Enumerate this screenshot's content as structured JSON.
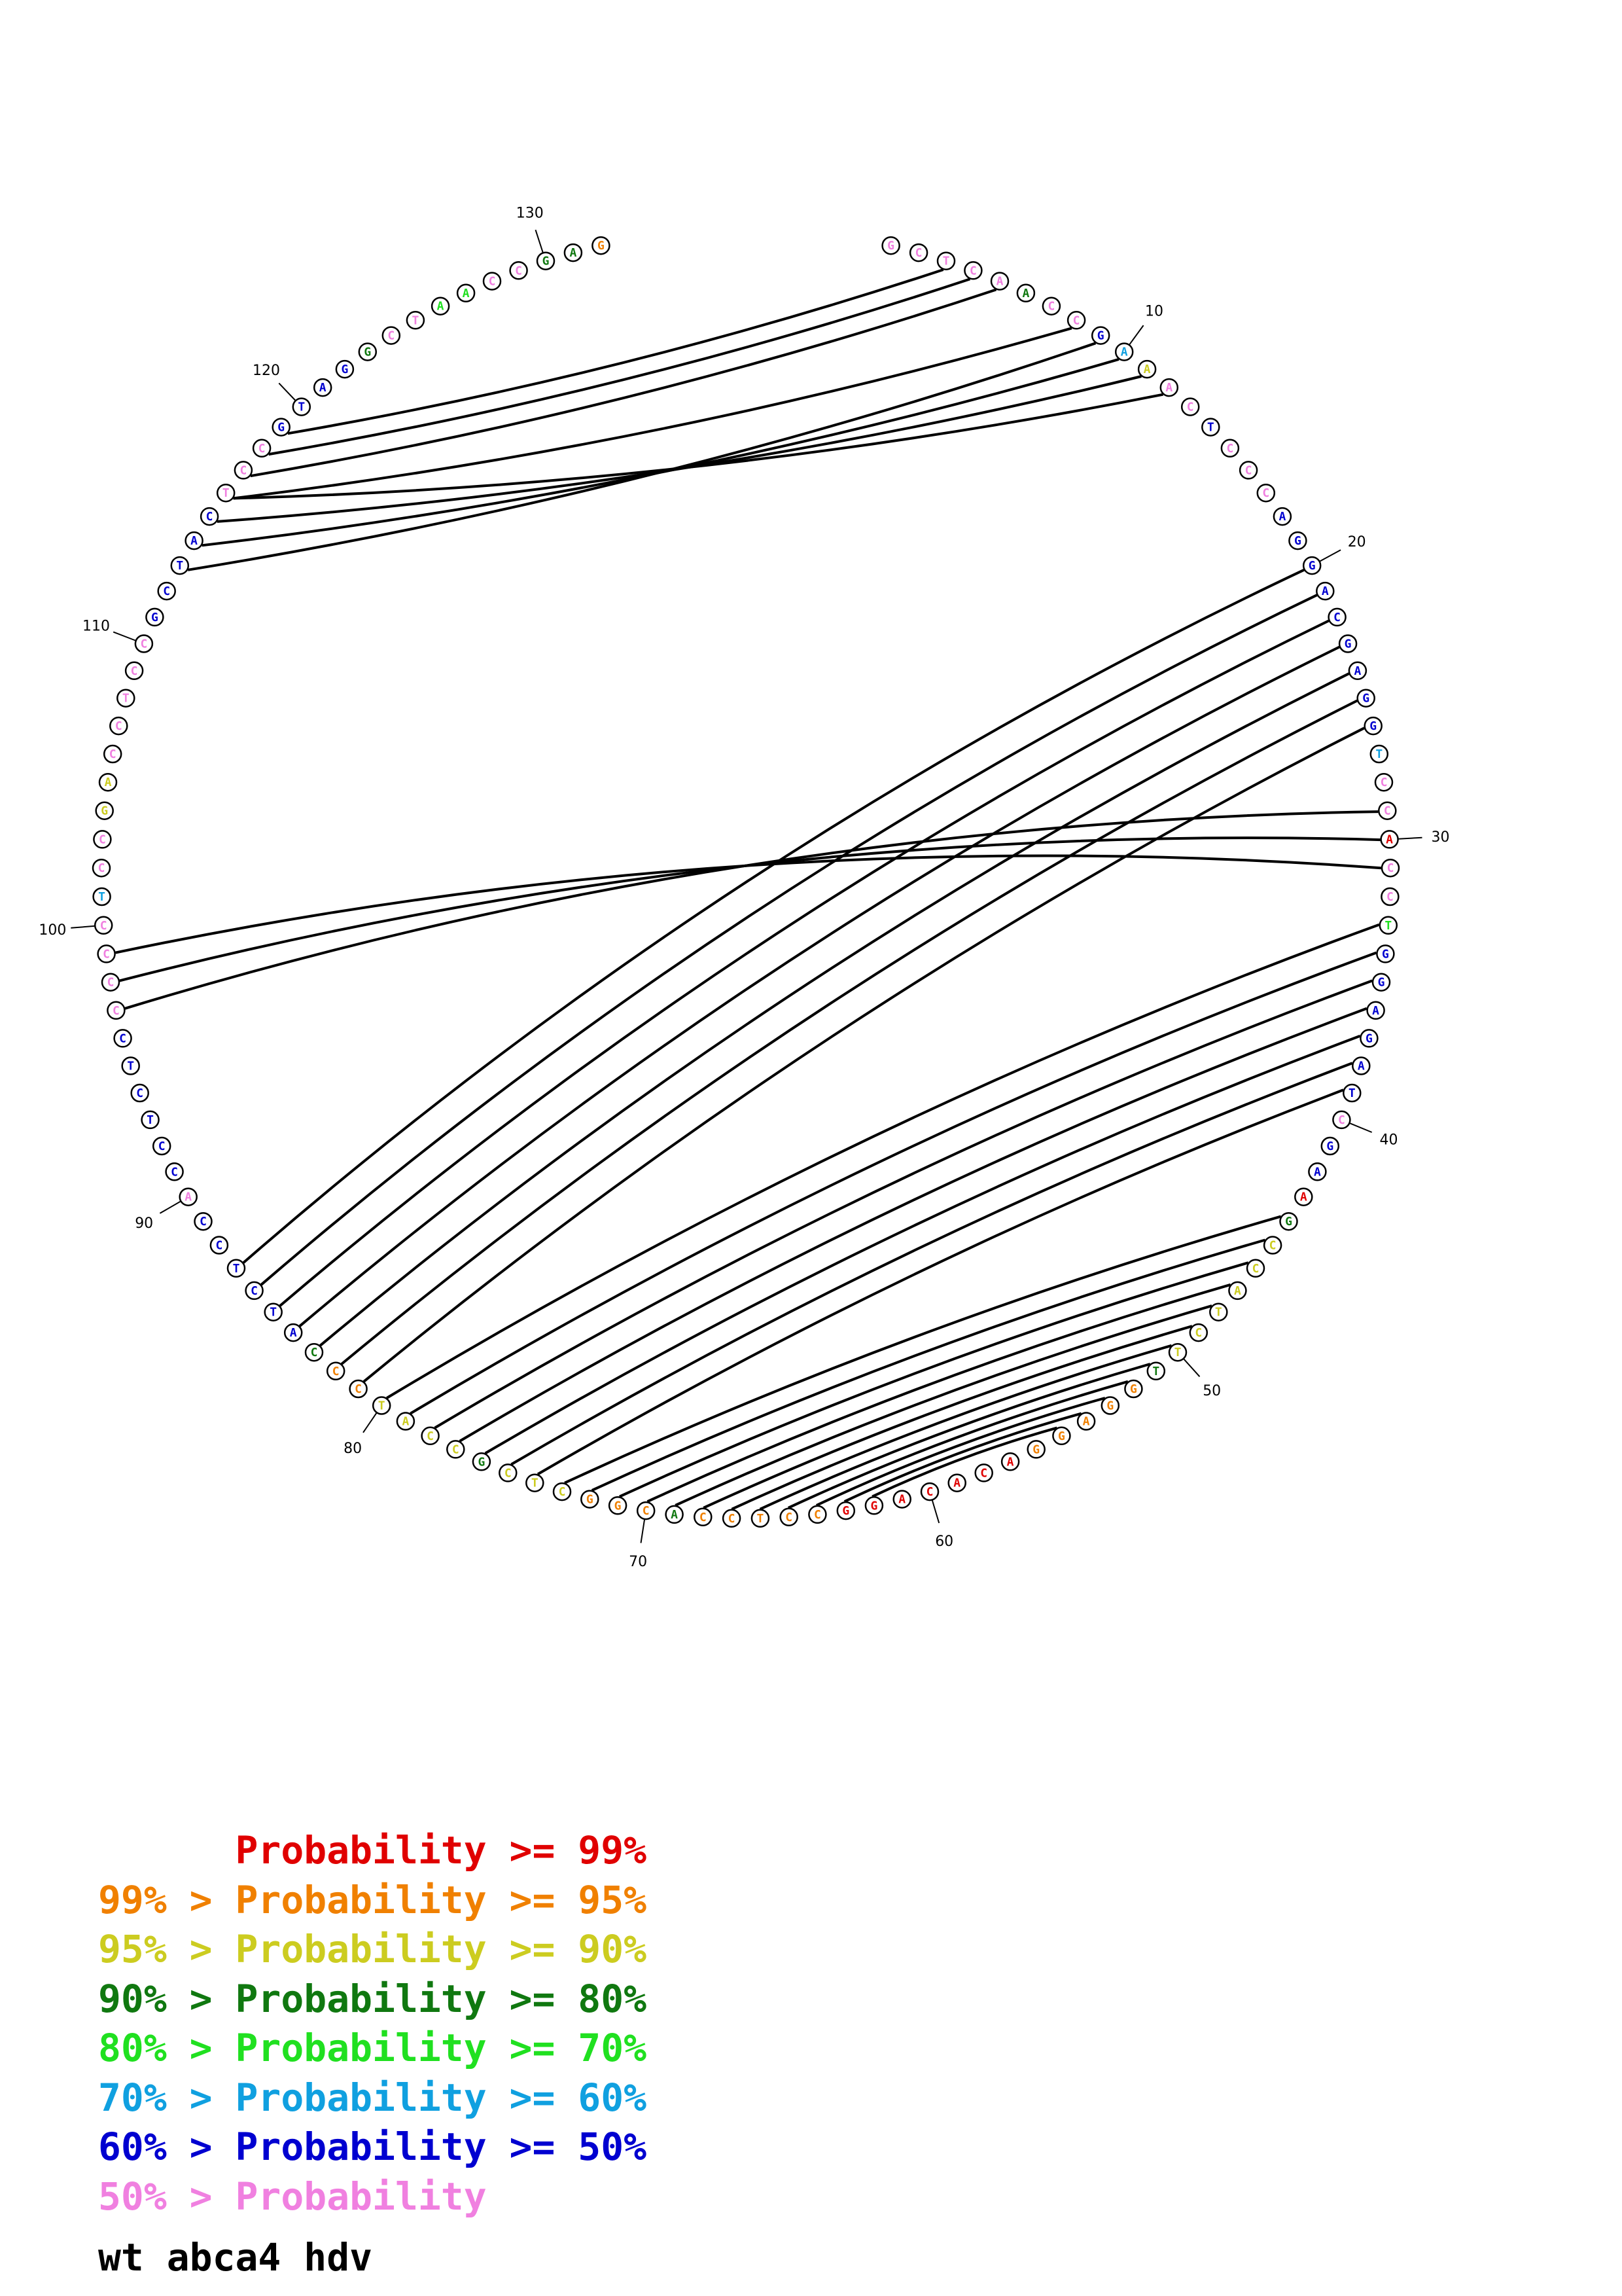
{
  "title": "wt abca4 hdv",
  "legend": [
    {
      "prefix": "      ",
      "label": "Probability >= 99%",
      "color": "#e00000"
    },
    {
      "prefix": "99% > ",
      "label": "Probability >= 95%",
      "color": "#f08000"
    },
    {
      "prefix": "95% > ",
      "label": "Probability >= 90%",
      "color": "#cccc20"
    },
    {
      "prefix": "90% > ",
      "label": "Probability >= 80%",
      "color": "#107810"
    },
    {
      "prefix": "80% > ",
      "label": "Probability >= 70%",
      "color": "#20e020"
    },
    {
      "prefix": "70% > ",
      "label": "Probability >= 60%",
      "color": "#10a0e0"
    },
    {
      "prefix": "60% > ",
      "label": "Probability >= 50%",
      "color": "#0000d0"
    },
    {
      "prefix": "50% > ",
      "label": "Probability",
      "color": "#f080e0"
    }
  ],
  "tick_labels": [
    "10",
    "20",
    "30",
    "40",
    "50",
    "60",
    "70",
    "80",
    "90",
    "100",
    "110",
    "120",
    "130"
  ],
  "sequence": [
    {
      "base": "G",
      "prob": "p50"
    },
    {
      "base": "C",
      "prob": "p50"
    },
    {
      "base": "T",
      "prob": "p50"
    },
    {
      "base": "C",
      "prob": "p50"
    },
    {
      "base": "A",
      "prob": "p50"
    },
    {
      "base": "A",
      "prob": "p80"
    },
    {
      "base": "C",
      "prob": "p50"
    },
    {
      "base": "C",
      "prob": "p50"
    },
    {
      "base": "G",
      "prob": "p50b"
    },
    {
      "base": "A",
      "prob": "p60"
    },
    {
      "base": "A",
      "prob": "p90"
    },
    {
      "base": "A",
      "prob": "p50"
    },
    {
      "base": "C",
      "prob": "p50"
    },
    {
      "base": "T",
      "prob": "p50b"
    },
    {
      "base": "C",
      "prob": "p50"
    },
    {
      "base": "C",
      "prob": "p50"
    },
    {
      "base": "C",
      "prob": "p50"
    },
    {
      "base": "A",
      "prob": "p50b"
    },
    {
      "base": "G",
      "prob": "p50b"
    },
    {
      "base": "G",
      "prob": "p50b"
    },
    {
      "base": "A",
      "prob": "p50b"
    },
    {
      "base": "C",
      "prob": "p50b"
    },
    {
      "base": "G",
      "prob": "p50b"
    },
    {
      "base": "A",
      "prob": "p50b"
    },
    {
      "base": "G",
      "prob": "p50b"
    },
    {
      "base": "G",
      "prob": "p50b"
    },
    {
      "base": "T",
      "prob": "p60"
    },
    {
      "base": "C",
      "prob": "p50"
    },
    {
      "base": "C",
      "prob": "p50"
    },
    {
      "base": "A",
      "prob": "p99"
    },
    {
      "base": "C",
      "prob": "p50"
    },
    {
      "base": "C",
      "prob": "p50"
    },
    {
      "base": "T",
      "prob": "p70"
    },
    {
      "base": "G",
      "prob": "p50b"
    },
    {
      "base": "G",
      "prob": "p50b"
    },
    {
      "base": "A",
      "prob": "p50b"
    },
    {
      "base": "G",
      "prob": "p50b"
    },
    {
      "base": "A",
      "prob": "p50b"
    },
    {
      "base": "T",
      "prob": "p50b"
    },
    {
      "base": "C",
      "prob": "p50"
    },
    {
      "base": "G",
      "prob": "p50b"
    },
    {
      "base": "A",
      "prob": "p50b"
    },
    {
      "base": "A",
      "prob": "p99"
    },
    {
      "base": "G",
      "prob": "p80"
    },
    {
      "base": "C",
      "prob": "p90"
    },
    {
      "base": "C",
      "prob": "p90"
    },
    {
      "base": "A",
      "prob": "p90"
    },
    {
      "base": "T",
      "prob": "p90"
    },
    {
      "base": "C",
      "prob": "p90"
    },
    {
      "base": "T",
      "prob": "p90"
    },
    {
      "base": "T",
      "prob": "p80"
    },
    {
      "base": "G",
      "prob": "p95"
    },
    {
      "base": "G",
      "prob": "p95"
    },
    {
      "base": "A",
      "prob": "p95"
    },
    {
      "base": "G",
      "prob": "p95"
    },
    {
      "base": "G",
      "prob": "p95"
    },
    {
      "base": "A",
      "prob": "p99"
    },
    {
      "base": "C",
      "prob": "p99"
    },
    {
      "base": "A",
      "prob": "p99"
    },
    {
      "base": "C",
      "prob": "p99"
    },
    {
      "base": "A",
      "prob": "p99"
    },
    {
      "base": "G",
      "prob": "p99"
    },
    {
      "base": "G",
      "prob": "p99"
    },
    {
      "base": "C",
      "prob": "p95"
    },
    {
      "base": "C",
      "prob": "p95"
    },
    {
      "base": "T",
      "prob": "p95"
    },
    {
      "base": "C",
      "prob": "p95"
    },
    {
      "base": "C",
      "prob": "p95"
    },
    {
      "base": "A",
      "prob": "p80"
    },
    {
      "base": "C",
      "prob": "p95"
    },
    {
      "base": "G",
      "prob": "p95"
    },
    {
      "base": "G",
      "prob": "p95"
    },
    {
      "base": "C",
      "prob": "p90"
    },
    {
      "base": "T",
      "prob": "p90"
    },
    {
      "base": "C",
      "prob": "p90"
    },
    {
      "base": "G",
      "prob": "p80"
    },
    {
      "base": "C",
      "prob": "p90"
    },
    {
      "base": "C",
      "prob": "p90"
    },
    {
      "base": "A",
      "prob": "p90"
    },
    {
      "base": "T",
      "prob": "p90"
    },
    {
      "base": "C",
      "prob": "p95"
    },
    {
      "base": "C",
      "prob": "p95"
    },
    {
      "base": "C",
      "prob": "p80"
    },
    {
      "base": "A",
      "prob": "p50b"
    },
    {
      "base": "T",
      "prob": "p50b"
    },
    {
      "base": "C",
      "prob": "p50b"
    },
    {
      "base": "T",
      "prob": "p50b"
    },
    {
      "base": "C",
      "prob": "p50b"
    },
    {
      "base": "C",
      "prob": "p50b"
    },
    {
      "base": "A",
      "prob": "p50"
    },
    {
      "base": "C",
      "prob": "p50b"
    },
    {
      "base": "C",
      "prob": "p50b"
    },
    {
      "base": "T",
      "prob": "p50b"
    },
    {
      "base": "C",
      "prob": "p50b"
    },
    {
      "base": "T",
      "prob": "p50b"
    },
    {
      "base": "C",
      "prob": "p50b"
    },
    {
      "base": "C",
      "prob": "p50"
    },
    {
      "base": "C",
      "prob": "p50"
    },
    {
      "base": "C",
      "prob": "p50"
    },
    {
      "base": "C",
      "prob": "p50"
    },
    {
      "base": "T",
      "prob": "p60"
    },
    {
      "base": "C",
      "prob": "p50"
    },
    {
      "base": "C",
      "prob": "p50"
    },
    {
      "base": "G",
      "prob": "p90"
    },
    {
      "base": "A",
      "prob": "p90"
    },
    {
      "base": "C",
      "prob": "p50"
    },
    {
      "base": "C",
      "prob": "p50"
    },
    {
      "base": "T",
      "prob": "p50"
    },
    {
      "base": "C",
      "prob": "p50"
    },
    {
      "base": "C",
      "prob": "p50"
    },
    {
      "base": "G",
      "prob": "p50b"
    },
    {
      "base": "C",
      "prob": "p50b"
    },
    {
      "base": "T",
      "prob": "p50b"
    },
    {
      "base": "A",
      "prob": "p50b"
    },
    {
      "base": "C",
      "prob": "p50b"
    },
    {
      "base": "T",
      "prob": "p50"
    },
    {
      "base": "C",
      "prob": "p50"
    },
    {
      "base": "C",
      "prob": "p50"
    },
    {
      "base": "G",
      "prob": "p50b"
    },
    {
      "base": "T",
      "prob": "p50b"
    },
    {
      "base": "A",
      "prob": "p50b"
    },
    {
      "base": "G",
      "prob": "p50b"
    },
    {
      "base": "G",
      "prob": "p80"
    },
    {
      "base": "C",
      "prob": "p50"
    },
    {
      "base": "T",
      "prob": "p50"
    },
    {
      "base": "A",
      "prob": "p70"
    },
    {
      "base": "A",
      "prob": "p70"
    },
    {
      "base": "C",
      "prob": "p50"
    },
    {
      "base": "C",
      "prob": "p50"
    },
    {
      "base": "G",
      "prob": "p80"
    },
    {
      "base": "A",
      "prob": "p80"
    },
    {
      "base": "G",
      "prob": "p95"
    }
  ],
  "pairs": [
    [
      3,
      119
    ],
    [
      4,
      118
    ],
    [
      5,
      117
    ],
    [
      8,
      116
    ],
    [
      20,
      87
    ],
    [
      21,
      86
    ],
    [
      22,
      85
    ],
    [
      23,
      84
    ],
    [
      24,
      83
    ],
    [
      25,
      82
    ],
    [
      26,
      81
    ],
    [
      29,
      97
    ],
    [
      30,
      98
    ],
    [
      31,
      99
    ],
    [
      33,
      80
    ],
    [
      34,
      79
    ],
    [
      35,
      78
    ],
    [
      36,
      77
    ],
    [
      37,
      76
    ],
    [
      38,
      75
    ],
    [
      39,
      74
    ],
    [
      44,
      73
    ],
    [
      45,
      72
    ],
    [
      46,
      71
    ],
    [
      47,
      70
    ],
    [
      48,
      69
    ],
    [
      49,
      68
    ],
    [
      50,
      67
    ],
    [
      51,
      66
    ],
    [
      52,
      65
    ],
    [
      53,
      64
    ],
    [
      54,
      63
    ],
    [
      55,
      62
    ],
    [
      113,
      9
    ],
    [
      114,
      10
    ],
    [
      115,
      11
    ],
    [
      116,
      12
    ]
  ],
  "colors": {
    "p99": "#e00000",
    "p95": "#f08000",
    "p90": "#cccc20",
    "p80": "#107810",
    "p70": "#20e020",
    "p60": "#10a0e0",
    "p50b": "#0000d0",
    "p50": "#f080e0"
  }
}
